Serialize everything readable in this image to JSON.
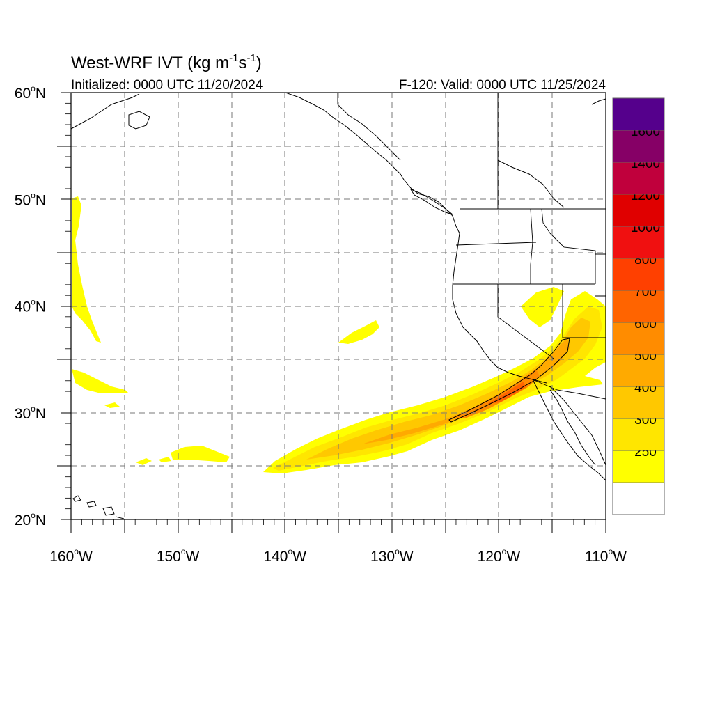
{
  "title": {
    "main": "West-WRF IVT (kg m",
    "sup1": "-1",
    "mid": "s",
    "sup2": "-1",
    "end": ")"
  },
  "subtitle_left": "Initialized: 0000 UTC 11/20/2024",
  "subtitle_right": "F-120: Valid: 0000 UTC 11/25/2024",
  "y_axis": {
    "ticks": [
      {
        "value": 60,
        "label": "60",
        "hemi": "N"
      },
      {
        "value": 50,
        "label": "50",
        "hemi": "N"
      },
      {
        "value": 40,
        "label": "40",
        "hemi": "N"
      },
      {
        "value": 30,
        "label": "30",
        "hemi": "N"
      },
      {
        "value": 20,
        "label": "20",
        "hemi": "N"
      }
    ],
    "range": [
      20,
      60
    ]
  },
  "x_axis": {
    "ticks": [
      {
        "value": -160,
        "label": "160",
        "hemi": "W"
      },
      {
        "value": -150,
        "label": "150",
        "hemi": "W"
      },
      {
        "value": -140,
        "label": "140",
        "hemi": "W"
      },
      {
        "value": -130,
        "label": "130",
        "hemi": "W"
      },
      {
        "value": -120,
        "label": "120",
        "hemi": "W"
      },
      {
        "value": -110,
        "label": "110",
        "hemi": "W"
      }
    ],
    "range": [
      -160,
      -110
    ]
  },
  "colorbar": {
    "levels": [
      {
        "color": "#ffffff",
        "label": ""
      },
      {
        "color": "#ffff00",
        "label": "250"
      },
      {
        "color": "#ffe600",
        "label": "300"
      },
      {
        "color": "#ffc800",
        "label": "400"
      },
      {
        "color": "#ffaa00",
        "label": "500"
      },
      {
        "color": "#ff8c00",
        "label": "600"
      },
      {
        "color": "#ff6400",
        "label": "700"
      },
      {
        "color": "#ff4000",
        "label": "800"
      },
      {
        "color": "#f01010",
        "label": "1000"
      },
      {
        "color": "#e00000",
        "label": "1200"
      },
      {
        "color": "#c0003c",
        "label": "1400"
      },
      {
        "color": "#860066",
        "label": "1600"
      },
      {
        "color": "#55008c",
        "label": ""
      }
    ]
  },
  "colors": {
    "ivt_250": "#ffff00",
    "ivt_300": "#ffe600",
    "ivt_400": "#ffc800",
    "ivt_500": "#ffaa00",
    "ivt_600": "#ff8c00",
    "ivt_700": "#ff6400",
    "coast": "#000000",
    "grid": "#777777"
  }
}
